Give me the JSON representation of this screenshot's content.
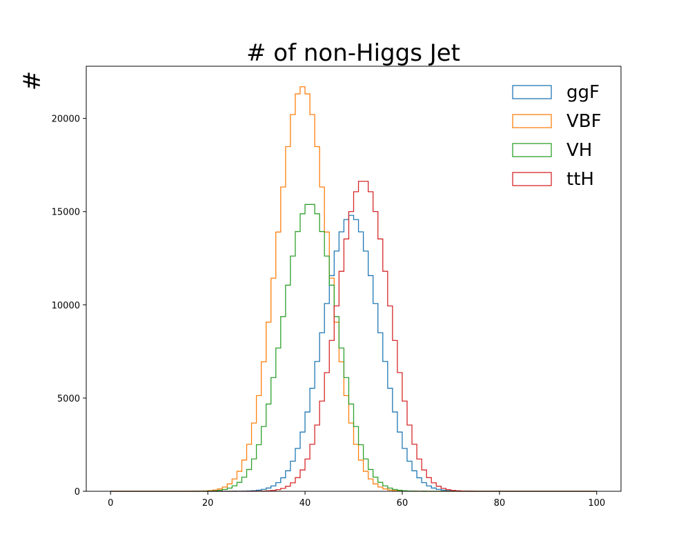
{
  "chart_data": {
    "type": "step-histogram",
    "title": "# of non-Higgs Jet",
    "xlabel": "",
    "ylabel": "#",
    "xlim": [
      -5,
      105
    ],
    "ylim": [
      0,
      22800
    ],
    "x_ticks": [
      0,
      20,
      40,
      60,
      80,
      100
    ],
    "y_ticks": [
      0,
      5000,
      10000,
      15000,
      20000
    ],
    "grid": false,
    "legend_position": "upper-right",
    "bins": {
      "start": 0,
      "end": 100,
      "count": 100
    },
    "series": [
      {
        "name": "ggF",
        "color": "#1f77b4",
        "mean": 49.5,
        "sigma": 5.7,
        "peak": 14800
      },
      {
        "name": "VBF",
        "color": "#ff7f0e",
        "mean": 39.5,
        "sigma": 5.3,
        "peak": 21700
      },
      {
        "name": "VH",
        "color": "#2ca02c",
        "mean": 41.0,
        "sigma": 5.5,
        "peak": 15450
      },
      {
        "name": "ttH",
        "color": "#d62728",
        "mean": 52.0,
        "sigma": 5.4,
        "peak": 16700
      }
    ]
  }
}
